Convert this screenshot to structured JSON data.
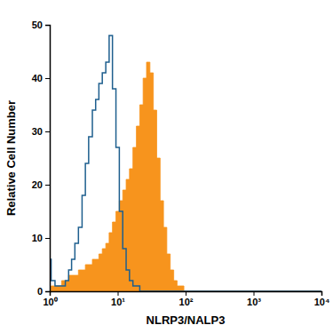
{
  "chart_data": {
    "type": "line",
    "x_label": "NLRP3/NALP3",
    "y_label": "Relative Cell Number",
    "log": "x",
    "grid": false,
    "xlim": [
      1,
      10000
    ],
    "xticks": [
      {
        "value": 1,
        "label": "10⁰"
      },
      {
        "value": 10,
        "label": "10¹"
      },
      {
        "value": 100,
        "label": "10²"
      },
      {
        "value": 1000,
        "label": "10³"
      },
      {
        "value": 10000,
        "label": "10⁴"
      }
    ],
    "ylim": [
      0,
      50
    ],
    "yticks": [
      0,
      10,
      20,
      30,
      40,
      50
    ],
    "x": [
      1,
      1.1,
      1.3,
      1.4,
      1.6,
      1.8,
      2,
      2.2,
      2.5,
      2.8,
      3.2,
      3.5,
      4,
      4.5,
      5,
      5.6,
      6.3,
      7.1,
      7.9,
      8.9,
      10,
      11.2,
      12.6,
      14.1,
      15.8,
      17.8,
      20,
      22.4,
      25.1,
      28.2,
      31.6,
      35.5,
      39.8,
      44.7,
      50,
      56,
      63,
      71,
      79,
      89,
      100,
      316,
      1000,
      3162,
      10000
    ],
    "series": [
      {
        "type": "line",
        "color": "#1e5f8e",
        "values": [
          6,
          2,
          1,
          1,
          1,
          2,
          4,
          6,
          9,
          12,
          18,
          24,
          29,
          34,
          36,
          39,
          41,
          43,
          48,
          38,
          27,
          15,
          8,
          4,
          2,
          1,
          1,
          0,
          0,
          0,
          0,
          0,
          0,
          0,
          0,
          0,
          0,
          0,
          0,
          0,
          0,
          0,
          0,
          0,
          0
        ]
      },
      {
        "type": "area",
        "color": "#f7941d",
        "values": [
          0,
          1,
          1,
          1,
          2,
          2,
          3,
          3,
          3,
          4,
          4,
          5,
          5,
          6,
          6,
          7,
          8,
          9,
          11,
          13,
          15,
          17,
          19,
          21,
          23,
          27,
          31,
          35,
          40,
          43,
          41,
          34,
          25,
          17,
          12,
          7,
          4,
          2,
          1,
          1,
          0,
          0,
          0,
          0,
          0
        ]
      }
    ]
  }
}
